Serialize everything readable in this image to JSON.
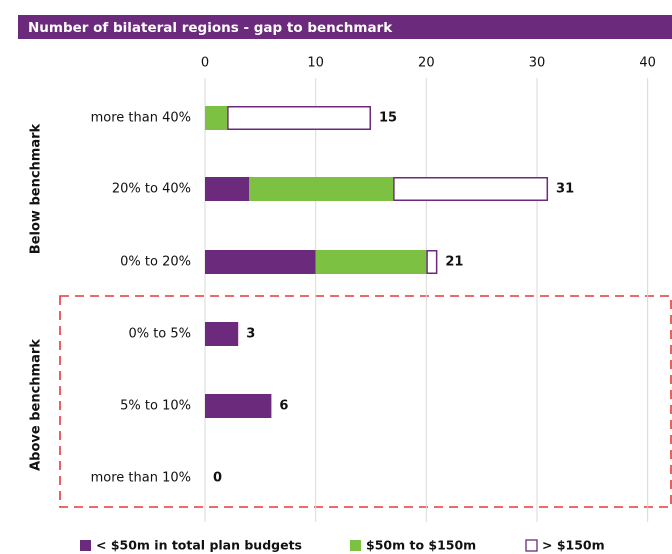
{
  "chart_data": {
    "type": "stacked-bar-horizontal",
    "title": "Number of bilateral regions - gap to benchmark",
    "groups": [
      "Below benchmark",
      "Above benchmark"
    ],
    "categories": [
      "more than 40%",
      "20% to 40%",
      "0% to 20%",
      "0% to 5%",
      "5% to 10%",
      "more than 10%"
    ],
    "series": [
      {
        "name": "< $50m in total plan budgets",
        "color": "#6b2a7b",
        "values": [
          0,
          4,
          10,
          3,
          6,
          0
        ]
      },
      {
        "name": "$50m to $150m",
        "color": "#7cc142",
        "values": [
          2,
          13,
          10,
          0,
          0,
          0
        ]
      },
      {
        "name": "> $150m",
        "color": "#ffffff",
        "values": [
          13,
          14,
          1,
          0,
          0,
          0
        ]
      }
    ],
    "totals": [
      15,
      31,
      21,
      3,
      6,
      0
    ],
    "xlim": [
      0,
      42.2
    ],
    "xticks": [
      0,
      10,
      20,
      30,
      40
    ],
    "grid": true
  }
}
